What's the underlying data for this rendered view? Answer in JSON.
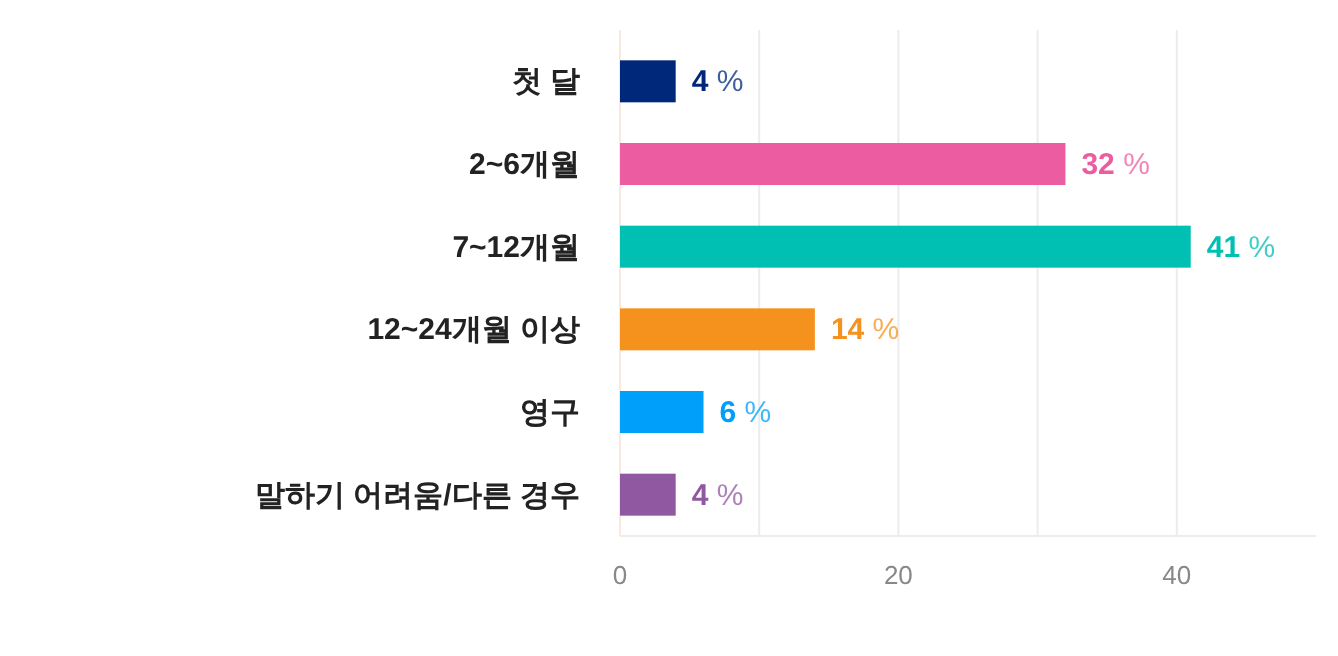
{
  "chart_data": {
    "type": "bar",
    "orientation": "horizontal",
    "categories": [
      "첫 달",
      "2~6개월",
      "7~12개월",
      "12~24개월 이상",
      "영구",
      "말하기 어려움/다른 경우"
    ],
    "values": [
      4,
      32,
      41,
      14,
      6,
      4
    ],
    "colors": [
      "#00287a",
      "#ec5ca0",
      "#00bfb3",
      "#f5921e",
      "#009ffa",
      "#9058a0"
    ],
    "value_labels": [
      "4 %",
      "32 %",
      "41 %",
      "14 %",
      "6 %",
      "4 %"
    ],
    "xlim": [
      0,
      50
    ],
    "xticks": [
      0,
      {
        "value": 10,
        "label": null
      },
      20,
      {
        "value": 30,
        "label": null
      },
      40
    ],
    "grid": "x"
  }
}
